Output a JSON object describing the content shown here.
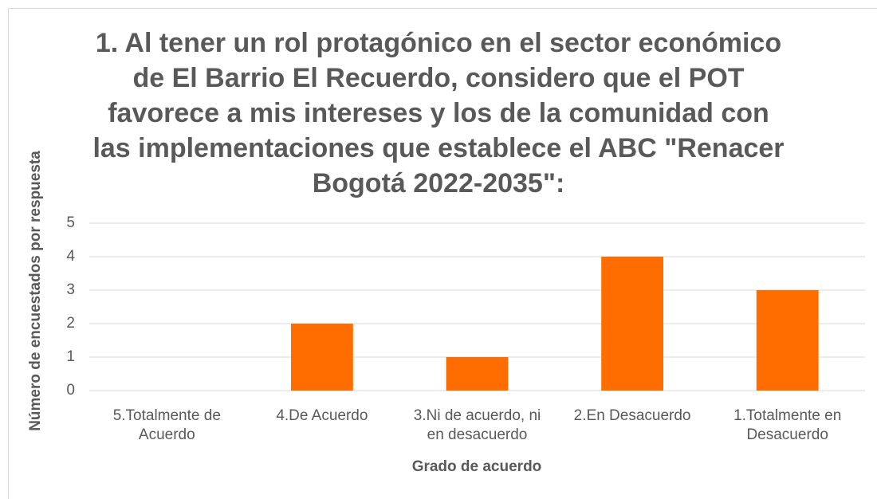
{
  "chart_data": {
    "type": "bar",
    "title": "1.  Al tener un rol protagónico en el sector económico de El Barrio El Recuerdo, considero que el POT favorece a mis intereses y los de la comunidad con las implementaciones que establece el ABC  \"Renacer Bogotá 2022-2035\":",
    "x_label": "Grado de acuerdo",
    "y_label": "Número de encuestados por respuesta",
    "categories": [
      "5.Totalmente de Acuerdo",
      "4.De Acuerdo",
      "3.Ni de acuerdo, ni en desacuerdo",
      "2.En Desacuerdo",
      "1.Totalmente en Desacuerdo"
    ],
    "values": [
      0,
      2,
      1,
      4,
      3
    ],
    "color": "#ff6d00",
    "ylim": [
      0,
      5
    ],
    "yticks": [
      0,
      1,
      2,
      3,
      4,
      5
    ],
    "grid": true
  }
}
